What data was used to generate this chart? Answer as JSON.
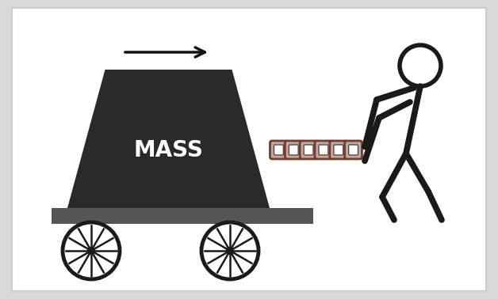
{
  "bg_color": "#d8d8d8",
  "inner_bg": "#ffffff",
  "mass_color": "#2a2a2a",
  "cart_color": "#555555",
  "wheel_outer": "#1a1a1a",
  "wheel_inner": "#ffffff",
  "chain_fill": "#b0b0b0",
  "chain_stroke": "#7a3a2a",
  "stick_color": "#1a1a1a",
  "arrow_color": "#111111",
  "text_color": "#ffffff",
  "mass_label": "MASS",
  "border_color": "#cccccc",
  "figw": 6.28,
  "figh": 3.78,
  "dpi": 100
}
